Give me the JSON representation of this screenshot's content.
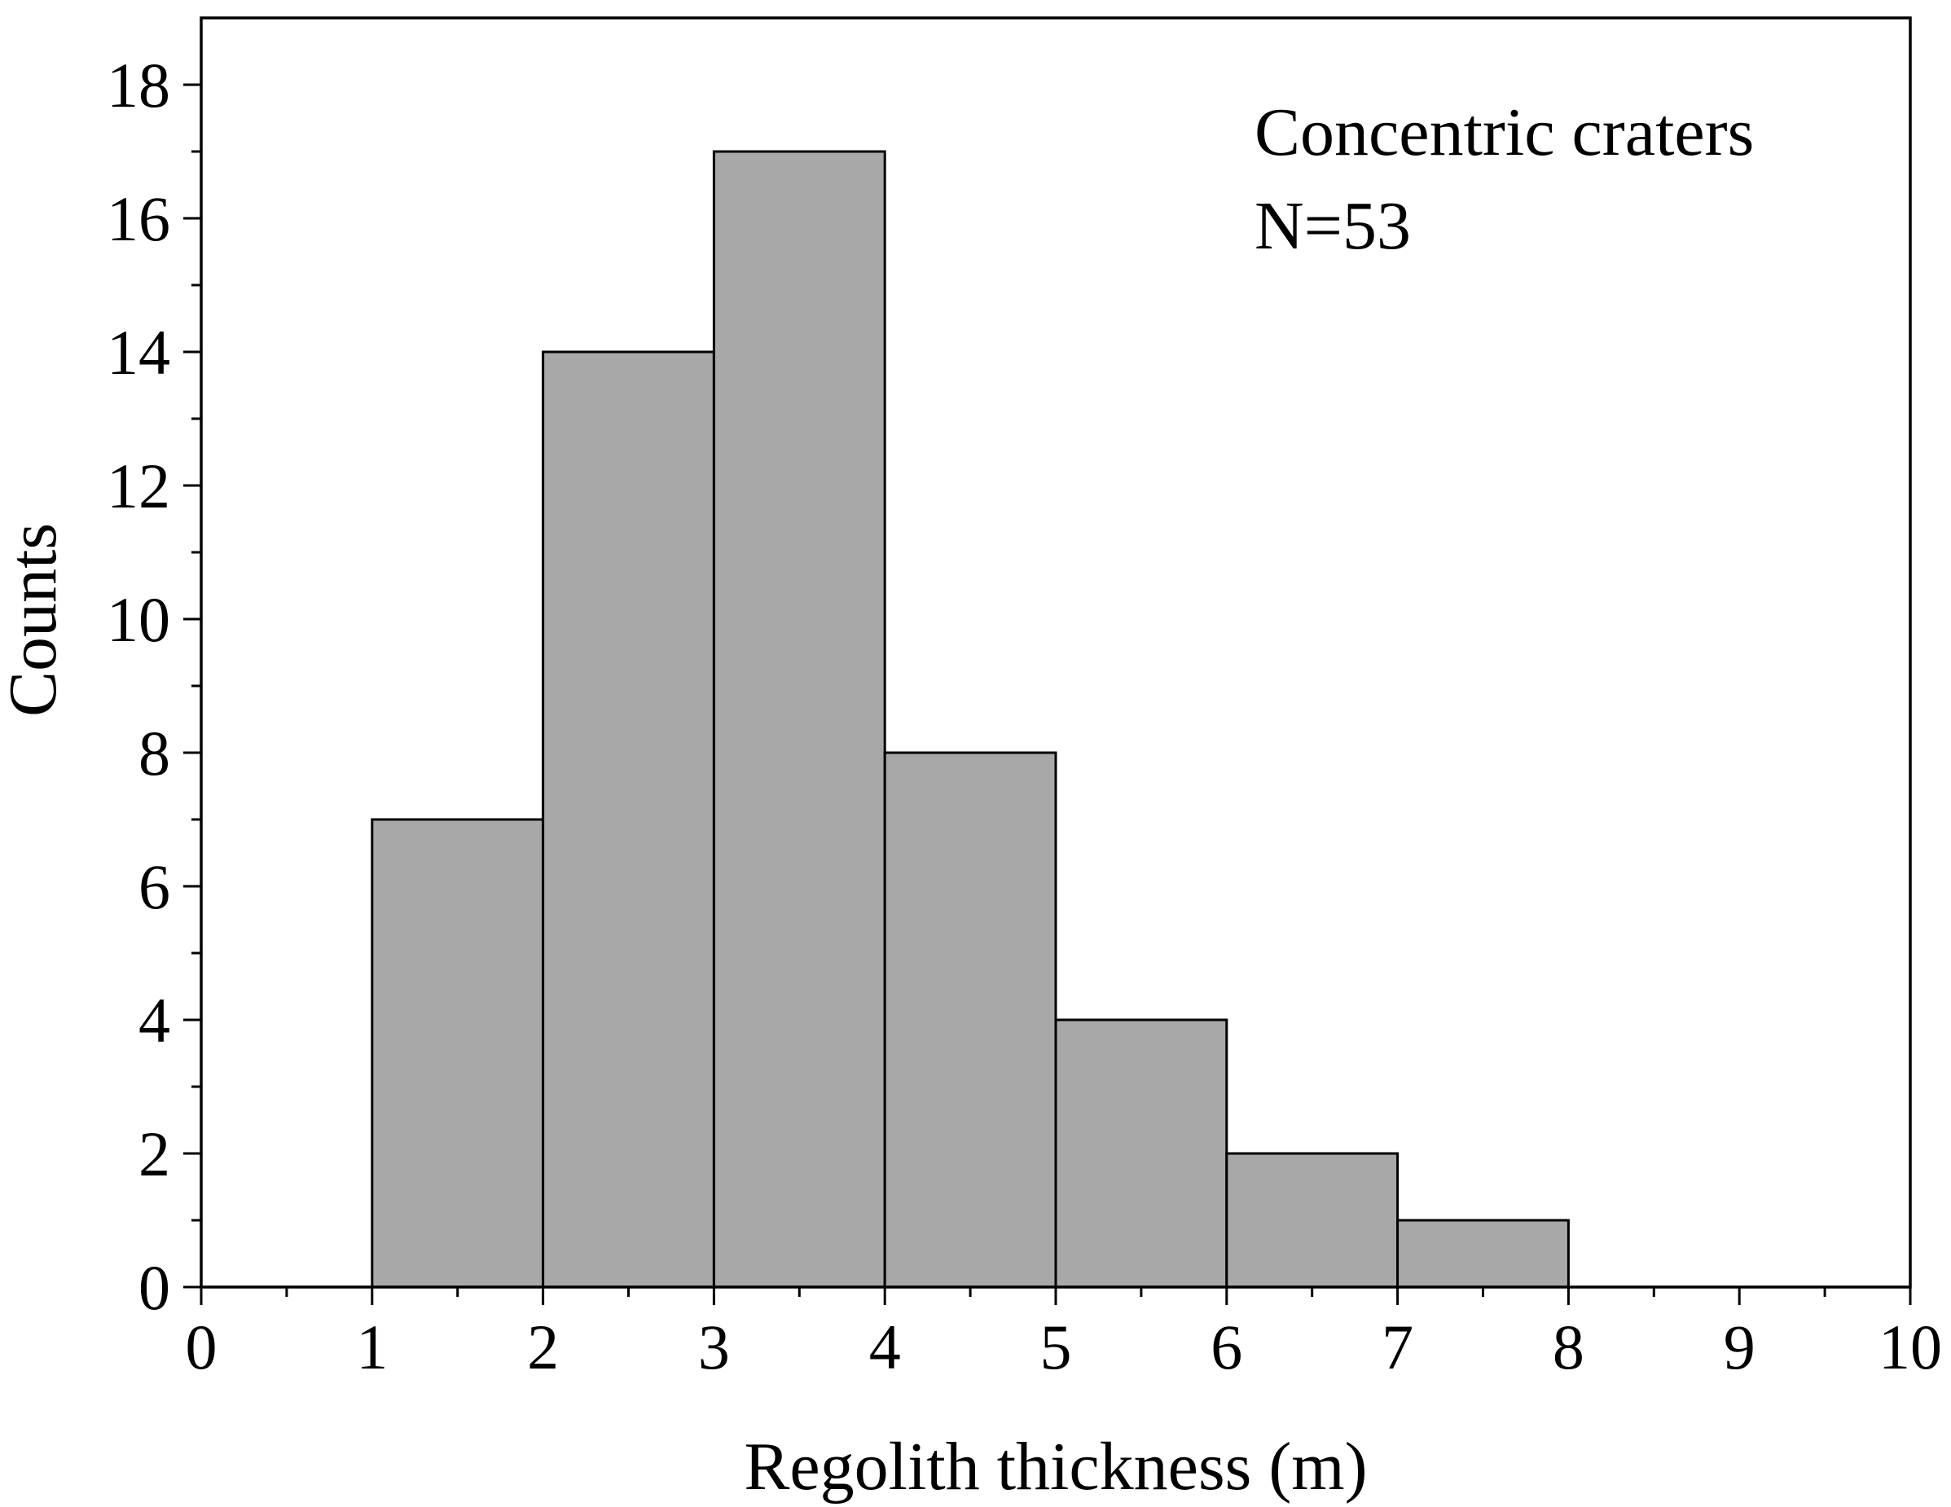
{
  "chart_data": {
    "type": "bar",
    "xlabel": "Regolith thickness (m)",
    "ylabel": "Counts",
    "xlim": [
      0,
      10
    ],
    "ylim": [
      0,
      19
    ],
    "x_ticks": [
      "0",
      "1",
      "2",
      "3",
      "4",
      "5",
      "6",
      "7",
      "8",
      "9",
      "10"
    ],
    "y_ticks": [
      "0",
      "2",
      "4",
      "6",
      "8",
      "10",
      "12",
      "14",
      "16",
      "18"
    ],
    "bins": [
      {
        "from": 1,
        "to": 2,
        "count": 7
      },
      {
        "from": 2,
        "to": 3,
        "count": 14
      },
      {
        "from": 3,
        "to": 4,
        "count": 17
      },
      {
        "from": 4,
        "to": 5,
        "count": 8
      },
      {
        "from": 5,
        "to": 6,
        "count": 4
      },
      {
        "from": 6,
        "to": 7,
        "count": 2
      },
      {
        "from": 7,
        "to": 8,
        "count": 1
      }
    ],
    "annotation": [
      "Concentric craters",
      "N=53"
    ],
    "bar_color": "#a8a8a8",
    "edge_color": "#000000",
    "grid": false,
    "legend": "none"
  }
}
